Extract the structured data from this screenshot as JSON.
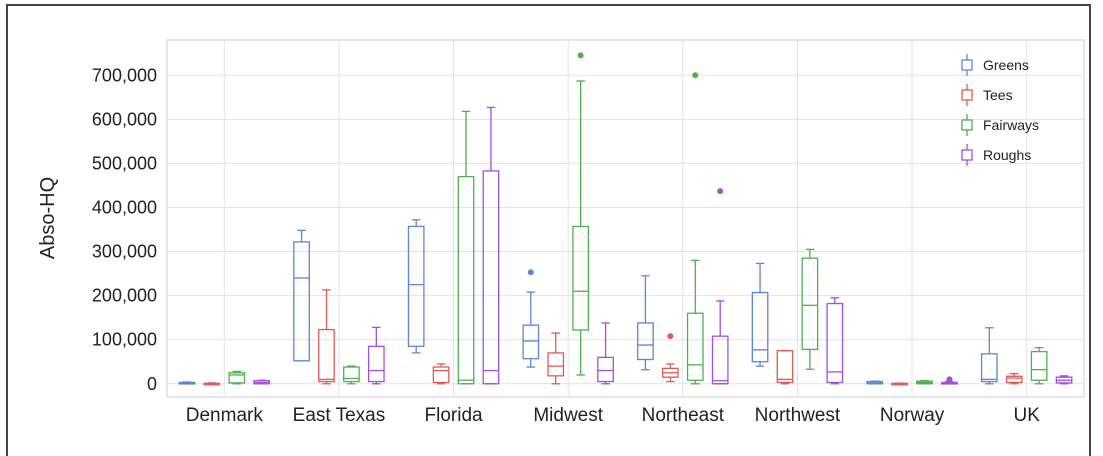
{
  "chart_data": {
    "type": "box",
    "title": "",
    "xlabel": "",
    "ylabel": "Abso-HQ",
    "ylim": [
      -30000,
      780000
    ],
    "yticks": [
      0,
      100000,
      200000,
      300000,
      400000,
      500000,
      600000,
      700000
    ],
    "ytick_labels": [
      "0",
      "100,000",
      "200,000",
      "300,000",
      "400,000",
      "500,000",
      "600,000",
      "700,000"
    ],
    "categories": [
      "Denmark",
      "East Texas",
      "Florida",
      "Midwest",
      "Northeast",
      "Northwest",
      "Norway",
      "UK"
    ],
    "grid": true,
    "legend_position": "top-right",
    "series": [
      {
        "name": "Greens",
        "color": "#5b85d6",
        "boxes": [
          {
            "min": 0,
            "q1": 0,
            "median": 1000,
            "q3": 3000,
            "max": 4000,
            "outliers": []
          },
          {
            "min": 52000,
            "q1": 52000,
            "median": 240000,
            "q3": 322000,
            "max": 348000,
            "outliers": []
          },
          {
            "min": 70000,
            "q1": 85000,
            "median": 225000,
            "q3": 357000,
            "max": 372000,
            "outliers": []
          },
          {
            "min": 38000,
            "q1": 57000,
            "median": 97000,
            "q3": 133000,
            "max": 208000,
            "outliers": [
              253000
            ]
          },
          {
            "min": 32000,
            "q1": 55000,
            "median": 88000,
            "q3": 138000,
            "max": 245000,
            "outliers": []
          },
          {
            "min": 40000,
            "q1": 50000,
            "median": 77000,
            "q3": 207000,
            "max": 273000,
            "outliers": []
          },
          {
            "min": 0,
            "q1": 0,
            "median": 2000,
            "q3": 5000,
            "max": 6000,
            "outliers": []
          },
          {
            "min": 0,
            "q1": 5000,
            "median": 10000,
            "q3": 68000,
            "max": 127000,
            "outliers": []
          }
        ]
      },
      {
        "name": "Tees",
        "color": "#de5b55",
        "boxes": [
          {
            "min": 0,
            "q1": 0,
            "median": 500,
            "q3": 1000,
            "max": 2000,
            "outliers": []
          },
          {
            "min": 0,
            "q1": 5000,
            "median": 10000,
            "q3": 123000,
            "max": 213000,
            "outliers": []
          },
          {
            "min": 0,
            "q1": 3000,
            "median": 30000,
            "q3": 38000,
            "max": 45000,
            "outliers": []
          },
          {
            "min": 0,
            "q1": 18000,
            "median": 40000,
            "q3": 70000,
            "max": 115000,
            "outliers": []
          },
          {
            "min": 5000,
            "q1": 15000,
            "median": 25000,
            "q3": 35000,
            "max": 45000,
            "outliers": [
              108000
            ]
          },
          {
            "min": 0,
            "q1": 3000,
            "median": 10000,
            "q3": 75000,
            "max": 75000,
            "outliers": []
          },
          {
            "min": 0,
            "q1": 0,
            "median": 500,
            "q3": 1000,
            "max": 1500,
            "outliers": []
          },
          {
            "min": 0,
            "q1": 3000,
            "median": 13000,
            "q3": 17000,
            "max": 23000,
            "outliers": []
          }
        ]
      },
      {
        "name": "Fairways",
        "color": "#4fb04c",
        "boxes": [
          {
            "min": 0,
            "q1": 2000,
            "median": 20000,
            "q3": 25000,
            "max": 28000,
            "outliers": []
          },
          {
            "min": 0,
            "q1": 5000,
            "median": 12000,
            "q3": 38000,
            "max": 40000,
            "outliers": []
          },
          {
            "min": 0,
            "q1": 0,
            "median": 8000,
            "q3": 470000,
            "max": 618000,
            "outliers": []
          },
          {
            "min": 20000,
            "q1": 122000,
            "median": 210000,
            "q3": 357000,
            "max": 687000,
            "outliers": [
              745000
            ]
          },
          {
            "min": 0,
            "q1": 8000,
            "median": 43000,
            "q3": 160000,
            "max": 280000,
            "outliers": [
              700000
            ]
          },
          {
            "min": 33000,
            "q1": 78000,
            "median": 178000,
            "q3": 285000,
            "max": 305000,
            "outliers": []
          },
          {
            "min": 0,
            "q1": 0,
            "median": 3000,
            "q3": 6000,
            "max": 7000,
            "outliers": []
          },
          {
            "min": 0,
            "q1": 8000,
            "median": 32000,
            "q3": 73000,
            "max": 82000,
            "outliers": []
          }
        ]
      },
      {
        "name": "Roughs",
        "color": "#a14fdc",
        "boxes": [
          {
            "min": 0,
            "q1": 0,
            "median": 3000,
            "q3": 7000,
            "max": 8000,
            "outliers": []
          },
          {
            "min": 0,
            "q1": 5000,
            "median": 30000,
            "q3": 85000,
            "max": 128000,
            "outliers": []
          },
          {
            "min": 0,
            "q1": 0,
            "median": 30000,
            "q3": 483000,
            "max": 627000,
            "outliers": []
          },
          {
            "min": 0,
            "q1": 5000,
            "median": 30000,
            "q3": 60000,
            "max": 138000,
            "outliers": []
          },
          {
            "min": 0,
            "q1": 0,
            "median": 7000,
            "q3": 108000,
            "max": 188000,
            "outliers": [
              437000
            ]
          },
          {
            "min": 0,
            "q1": 3000,
            "median": 27000,
            "q3": 182000,
            "max": 195000,
            "outliers": []
          },
          {
            "min": 0,
            "q1": 0,
            "median": 1000,
            "q3": 3000,
            "max": 5000,
            "outliers": [
              10000
            ]
          },
          {
            "min": 0,
            "q1": 2000,
            "median": 8000,
            "q3": 15000,
            "max": 18000,
            "outliers": []
          }
        ]
      }
    ]
  }
}
